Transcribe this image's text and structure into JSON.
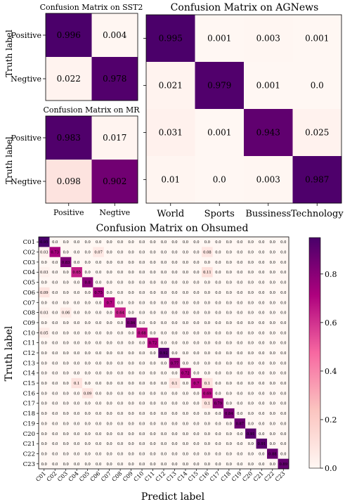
{
  "chart_data": [
    {
      "type": "heatmap",
      "title": "Confusion Matrix on SST2",
      "ylabel": "Truth label",
      "xlabel": "",
      "x_tick_labels": [],
      "y_tick_labels": [
        "Positive",
        "Negtive"
      ],
      "values": [
        [
          0.996,
          0.004
        ],
        [
          0.022,
          0.978
        ]
      ],
      "cell_labels": [
        [
          "0.996",
          "0.004"
        ],
        [
          "0.022",
          "0.978"
        ]
      ]
    },
    {
      "type": "heatmap",
      "title": "Confusion Matrix on MR",
      "ylabel": "Truth label",
      "xlabel": "",
      "x_tick_labels": [
        "Positive",
        "Negtive"
      ],
      "y_tick_labels": [
        "Positive",
        "Negtive"
      ],
      "values": [
        [
          0.983,
          0.017
        ],
        [
          0.098,
          0.902
        ]
      ],
      "cell_labels": [
        [
          "0.983",
          "0.017"
        ],
        [
          "0.098",
          "0.902"
        ]
      ]
    },
    {
      "type": "heatmap",
      "title": "Confusion Matrix on AGNews",
      "ylabel": "",
      "xlabel": "",
      "x_tick_labels": [
        "World",
        "Sports",
        "Bussiness",
        "Technology"
      ],
      "y_tick_labels": [],
      "values": [
        [
          0.995,
          0.001,
          0.003,
          0.001
        ],
        [
          0.021,
          0.979,
          0.001,
          0.0
        ],
        [
          0.031,
          0.001,
          0.943,
          0.025
        ],
        [
          0.01,
          0.0,
          0.003,
          0.987
        ]
      ],
      "cell_labels": [
        [
          "0.995",
          "0.001",
          "0.003",
          "0.001"
        ],
        [
          "0.021",
          "0.979",
          "0.001",
          "0.0"
        ],
        [
          "0.031",
          "0.001",
          "0.943",
          "0.025"
        ],
        [
          "0.01",
          "0.0",
          "0.003",
          "0.987"
        ]
      ]
    },
    {
      "type": "heatmap",
      "title": "Confusion Matrix on Ohsumed",
      "ylabel": "Truth label",
      "xlabel": "Predict label",
      "categories": [
        "C01",
        "C02",
        "C03",
        "C04",
        "C05",
        "C06",
        "C07",
        "C08",
        "C09",
        "C10",
        "C11",
        "C12",
        "C13",
        "C14",
        "C15",
        "C16",
        "C17",
        "C18",
        "C19",
        "C20",
        "C21",
        "C22",
        "C23"
      ],
      "diagonal": [
        0.95,
        0.73,
        0.83,
        0.65,
        0.8,
        0.75,
        0.7,
        0.64,
        0.84,
        0.68,
        0.72,
        0.92,
        0.77,
        0.72,
        0.7,
        0.69,
        0.79,
        0.84,
        0.87,
        0.91,
        0.91,
        0.88,
        0.89
      ],
      "off_diagonal": [
        {
          "row": 1,
          "col": 0,
          "value": 0.03
        },
        {
          "row": 1,
          "col": 5,
          "value": 0.07
        },
        {
          "row": 1,
          "col": 15,
          "value": 0.08
        },
        {
          "row": 3,
          "col": 0,
          "value": 0.03
        },
        {
          "row": 3,
          "col": 15,
          "value": 0.11
        },
        {
          "row": 5,
          "col": 0,
          "value": 0.09
        },
        {
          "row": 7,
          "col": 0,
          "value": 0.03
        },
        {
          "row": 7,
          "col": 2,
          "value": 0.06
        },
        {
          "row": 9,
          "col": 0,
          "value": 0.05
        },
        {
          "row": 14,
          "col": 3,
          "value": 0.1
        },
        {
          "row": 14,
          "col": 12,
          "value": 0.1
        },
        {
          "row": 14,
          "col": 15,
          "value": 0.1
        },
        {
          "row": 15,
          "col": 4,
          "value": 0.09
        },
        {
          "row": 16,
          "col": 15,
          "value": 0.1
        }
      ],
      "colorbar": {
        "min": 0.0,
        "max": 0.95,
        "ticks": [
          0.0,
          0.2,
          0.4,
          0.6,
          0.8
        ],
        "tick_labels": [
          "0.0",
          "0.2",
          "0.4",
          "0.6",
          "0.8"
        ]
      }
    }
  ]
}
